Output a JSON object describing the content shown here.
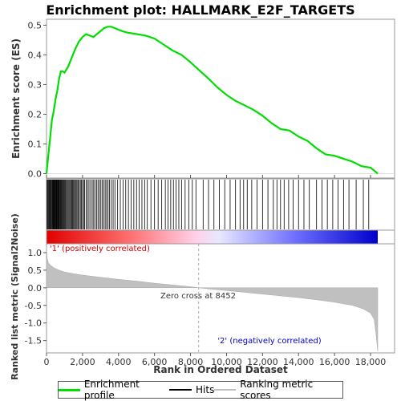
{
  "chart_data": {
    "type": "line",
    "title": "Enrichment plot: HALLMARK_E2F_TARGETS",
    "top_panel": {
      "ylabel": "Enrichment score (ES)",
      "ylim": [
        -0.015,
        0.52
      ],
      "yticks": [
        0.0,
        0.1,
        0.2,
        0.3,
        0.4,
        0.5
      ],
      "ytick_labels": [
        "0.0",
        "0.1",
        "0.2",
        "0.3",
        "0.4",
        "0.5"
      ],
      "series": [
        {
          "name": "Enrichment profile",
          "color": "#00dd00",
          "x": [
            0,
            100,
            200,
            300,
            400,
            500,
            600,
            700,
            800,
            900,
            1000,
            1200,
            1400,
            1600,
            1800,
            2000,
            2200,
            2400,
            2600,
            2800,
            3000,
            3200,
            3400,
            3600,
            3800,
            4000,
            4200,
            4500,
            5000,
            5500,
            6000,
            6500,
            7000,
            7500,
            8000,
            8452,
            9000,
            9500,
            10000,
            10500,
            11000,
            11500,
            12000,
            12500,
            13000,
            13500,
            14000,
            14500,
            15000,
            15500,
            16000,
            16500,
            17000,
            17500,
            18000,
            18400
          ],
          "values": [
            0.0,
            0.06,
            0.12,
            0.18,
            0.21,
            0.25,
            0.28,
            0.32,
            0.345,
            0.345,
            0.34,
            0.36,
            0.39,
            0.42,
            0.445,
            0.46,
            0.47,
            0.465,
            0.46,
            0.47,
            0.48,
            0.49,
            0.495,
            0.495,
            0.49,
            0.485,
            0.48,
            0.475,
            0.47,
            0.465,
            0.455,
            0.435,
            0.415,
            0.4,
            0.375,
            0.35,
            0.32,
            0.29,
            0.265,
            0.245,
            0.23,
            0.215,
            0.195,
            0.17,
            0.15,
            0.145,
            0.125,
            0.11,
            0.085,
            0.065,
            0.06,
            0.05,
            0.04,
            0.025,
            0.02,
            0.0
          ]
        }
      ]
    },
    "hits": {
      "name": "Hits",
      "color": "#000000",
      "positions": [
        20,
        60,
        100,
        140,
        180,
        220,
        260,
        300,
        330,
        360,
        390,
        420,
        450,
        480,
        510,
        540,
        570,
        600,
        630,
        660,
        690,
        720,
        760,
        800,
        840,
        880,
        920,
        960,
        1000,
        1050,
        1100,
        1150,
        1200,
        1250,
        1300,
        1350,
        1400,
        1450,
        1500,
        1550,
        1600,
        1650,
        1700,
        1760,
        1820,
        1880,
        1940,
        2000,
        2060,
        2120,
        2200,
        2280,
        2360,
        2450,
        2540,
        2620,
        2700,
        2780,
        2860,
        2940,
        3020,
        3100,
        3180,
        3260,
        3340,
        3420,
        3500,
        3600,
        3700,
        3800,
        3950,
        4100,
        4250,
        4400,
        4550,
        4700,
        4850,
        5000,
        5150,
        5300,
        5450,
        5600,
        5800,
        6000,
        6200,
        6400,
        6600,
        6750,
        6900,
        7050,
        7200,
        7350,
        7500,
        7700,
        7900,
        8100,
        8300,
        8700,
        9000,
        9300,
        9600,
        9900,
        10200,
        10500,
        10750,
        10950,
        11150,
        11400,
        11700,
        12000,
        12300,
        12600,
        12800,
        13000,
        13200,
        13450,
        13700,
        14000,
        14300,
        14600,
        15000,
        15300,
        15600,
        15900,
        16200,
        16500,
        16800,
        17200,
        17600,
        17900
      ]
    },
    "ranking_metric": {
      "name": "Ranking metric scores",
      "ylabel": "Ranked list metric (Signal2Noise)",
      "ylim": [
        -1.85,
        1.25
      ],
      "yticks": [
        1.0,
        0.5,
        0.0,
        -0.5,
        -1.0,
        -1.5
      ],
      "ytick_labels": [
        "1.0",
        "0.5",
        "0.0",
        "-0.5",
        "-1.0",
        "-1.5"
      ],
      "x": [
        0,
        30,
        100,
        200,
        400,
        700,
        1000,
        1500,
        2000,
        3000,
        4000,
        5000,
        6000,
        7000,
        8000,
        8452,
        9000,
        10000,
        11000,
        12000,
        13000,
        14000,
        15000,
        16000,
        17000,
        17600,
        18000,
        18200,
        18300,
        18400
      ],
      "values": [
        1.2,
        0.85,
        0.72,
        0.65,
        0.57,
        0.5,
        0.45,
        0.4,
        0.36,
        0.3,
        0.24,
        0.19,
        0.13,
        0.08,
        0.03,
        0.0,
        -0.03,
        -0.08,
        -0.13,
        -0.18,
        -0.23,
        -0.28,
        -0.34,
        -0.41,
        -0.5,
        -0.6,
        -0.72,
        -0.9,
        -1.3,
        -1.8
      ],
      "fill_color": "#c0c0c0"
    },
    "xlabel": "Rank in Ordered Dataset",
    "xlim": [
      0,
      18400
    ],
    "xticks": [
      0,
      2000,
      4000,
      6000,
      8000,
      10000,
      12000,
      14000,
      16000,
      18000
    ],
    "xtick_labels": [
      "0",
      "2,000",
      "4,000",
      "6,000",
      "8,000",
      "10,000",
      "12,000",
      "14,000",
      "16,000",
      "18,000"
    ],
    "zero_cross": 8452,
    "annotations": {
      "positive": "'1' (positively correlated)",
      "negative": "'2' (negatively correlated)",
      "zero_cross": "Zero cross at 8452"
    },
    "legend": {
      "placement": "bottom",
      "items": [
        {
          "label": "Enrichment profile",
          "color": "#00dd00"
        },
        {
          "label": "Hits",
          "color": "#000000"
        },
        {
          "label": "Ranking metric scores",
          "color": "#c0c0c0"
        }
      ]
    }
  }
}
